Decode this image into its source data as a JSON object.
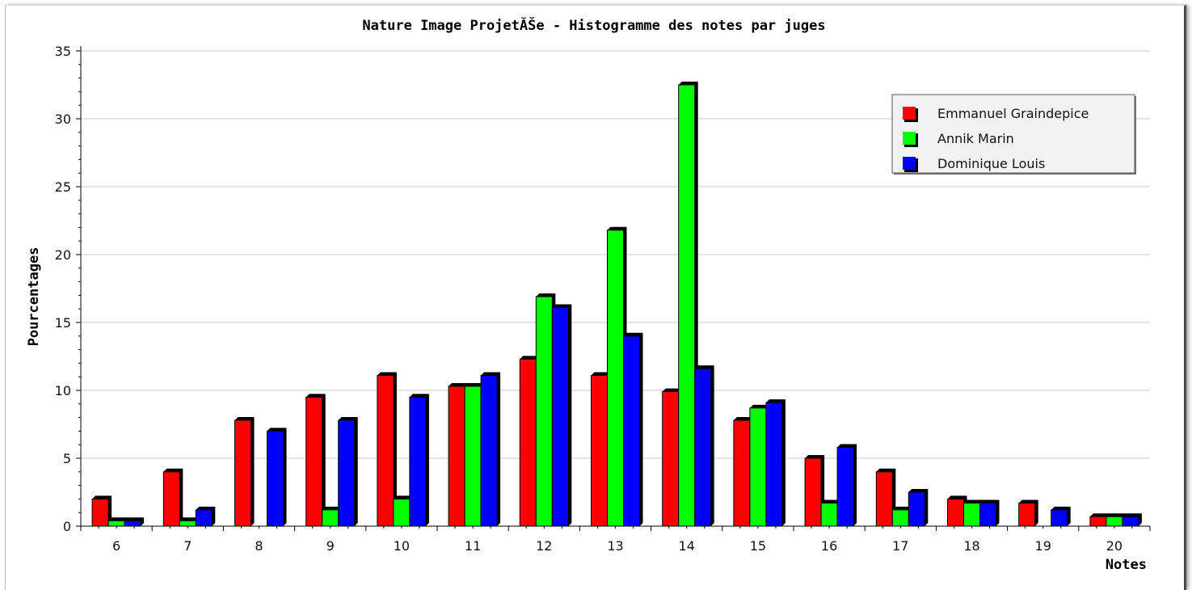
{
  "chart_data": {
    "type": "bar",
    "title": "Nature Image ProjetĂŠe - Histogramme des notes par juges",
    "xlabel": "Notes",
    "ylabel": "Pourcentages",
    "categories": [
      "6",
      "7",
      "8",
      "9",
      "10",
      "11",
      "12",
      "13",
      "14",
      "15",
      "16",
      "17",
      "18",
      "19",
      "20"
    ],
    "ylim": [
      0,
      35
    ],
    "yticks": [
      "0",
      "5",
      "10",
      "15",
      "20",
      "25",
      "30",
      "35"
    ],
    "grid": true,
    "legend_position": "top-right",
    "series": [
      {
        "name": "Emmanuel Graindepice",
        "color": "#ff0000",
        "values": [
          2.0,
          4.0,
          7.8,
          9.5,
          11.1,
          10.3,
          12.3,
          11.1,
          9.9,
          7.8,
          5.0,
          4.0,
          2.0,
          1.7,
          0.7
        ]
      },
      {
        "name": "Annik Marin",
        "color": "#00ff00",
        "values": [
          0.4,
          0.4,
          0.0,
          1.2,
          2.0,
          10.3,
          16.9,
          21.8,
          32.5,
          8.7,
          1.7,
          1.2,
          1.7,
          0.0,
          0.7
        ]
      },
      {
        "name": "Dominique Louis",
        "color": "#0000ff",
        "values": [
          0.4,
          1.2,
          7.0,
          7.8,
          9.5,
          11.1,
          16.1,
          14.0,
          11.6,
          9.1,
          5.8,
          2.5,
          1.7,
          1.2,
          0.7
        ]
      }
    ]
  }
}
